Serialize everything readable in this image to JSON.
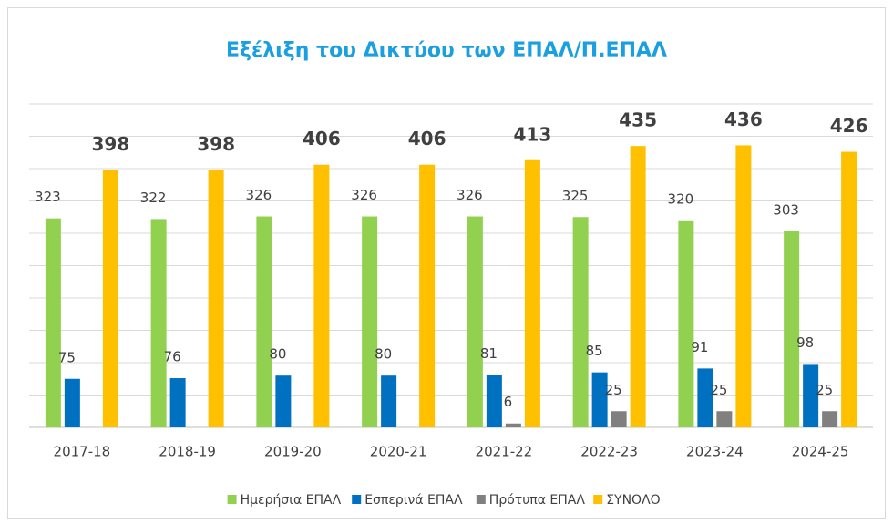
{
  "chart_data": {
    "type": "bar",
    "title": "Εξέλιξη του Δικτύου των ΕΠΑΛ/Π.ΕΠΑΛ",
    "categories": [
      "2017-18",
      "2018-19",
      "2019-20",
      "2020-21",
      "2021-22",
      "2022-23",
      "2023-24",
      "2024-25"
    ],
    "series": [
      {
        "name": "Ημερήσια ΕΠΑΛ",
        "color": "#92d050",
        "values": [
          323,
          322,
          326,
          326,
          326,
          325,
          320,
          303
        ]
      },
      {
        "name": "Εσπερινά ΕΠΑΛ",
        "color": "#0070c0",
        "values": [
          75,
          76,
          80,
          80,
          81,
          85,
          91,
          98
        ]
      },
      {
        "name": "Πρότυπα ΕΠΑΛ",
        "color": "#808080",
        "values": [
          null,
          null,
          null,
          null,
          6,
          25,
          25,
          25
        ]
      },
      {
        "name": "ΣΥΝΟΛΟ",
        "color": "#ffc000",
        "values": [
          398,
          398,
          406,
          406,
          413,
          435,
          436,
          426
        ]
      }
    ],
    "ylim": [
      0,
      500
    ],
    "yticks": [
      0,
      50,
      100,
      150,
      200,
      250,
      300,
      350,
      400,
      450,
      500
    ],
    "grid": true,
    "legend": "bottom"
  }
}
